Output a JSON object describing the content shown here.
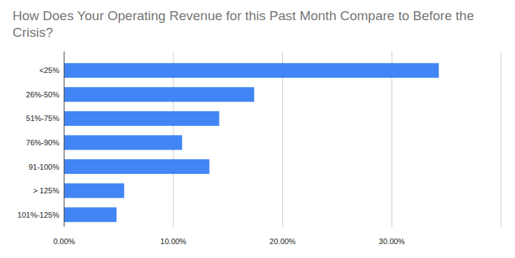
{
  "chart_data": {
    "type": "bar",
    "orientation": "horizontal",
    "title": "How Does Your Operating Revenue for this Past Month Compare to Before the Crisis?",
    "categories": [
      "<25%",
      "26%-50%",
      "51%-75%",
      "76%-90%",
      "91-100%",
      "> 125%",
      "101%-125%"
    ],
    "values": [
      34.3,
      17.4,
      14.2,
      10.8,
      13.3,
      5.5,
      4.8
    ],
    "color": "#4285f4",
    "xlim": [
      0,
      40
    ],
    "xticks": [
      {
        "value": 0,
        "label": "0.00%"
      },
      {
        "value": 10,
        "label": "10.00%"
      },
      {
        "value": 20,
        "label": "20.00%"
      },
      {
        "value": 30,
        "label": "30.00%"
      }
    ],
    "grid": true
  }
}
